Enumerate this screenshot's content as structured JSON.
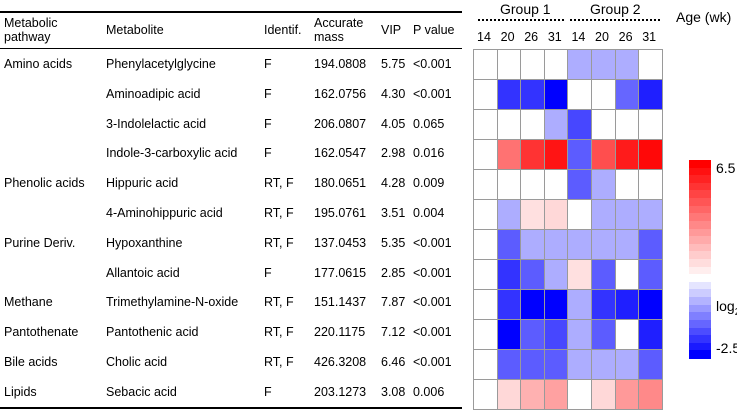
{
  "headers": {
    "pathway": [
      "Metabolic",
      "pathway"
    ],
    "metabolite": "Metabolite",
    "identif": "Identif.",
    "mass": [
      "Accurate",
      "mass"
    ],
    "vip": "VIP",
    "pvalue": "P value"
  },
  "rows": [
    {
      "pathway": "Amino acids",
      "metabolite": "Phenylacetylglycine",
      "identif": "F",
      "mass": "194.0808",
      "vip": "5.75",
      "p": "<0.001"
    },
    {
      "pathway": "",
      "metabolite": "Aminoadipic acid",
      "identif": "F",
      "mass": "162.0756",
      "vip": "4.30",
      "p": "<0.001"
    },
    {
      "pathway": "",
      "metabolite": "3-Indolelactic acid",
      "identif": "F",
      "mass": "206.0807",
      "vip": "4.05",
      "p": "0.065"
    },
    {
      "pathway": "",
      "metabolite": "Indole-3-carboxylic acid",
      "identif": "F",
      "mass": "162.0547",
      "vip": "2.98",
      "p": "0.016"
    },
    {
      "pathway": "Phenolic acids",
      "metabolite": "Hippuric acid",
      "identif": "RT, F",
      "mass": "180.0651",
      "vip": "4.28",
      "p": "0.009"
    },
    {
      "pathway": "",
      "metabolite": "4-Aminohippuric acid",
      "identif": "RT, F",
      "mass": "195.0761",
      "vip": "3.51",
      "p": "0.004"
    },
    {
      "pathway": "Purine Deriv.",
      "metabolite": "Hypoxanthine",
      "identif": "RT, F",
      "mass": "137.0453",
      "vip": "5.35",
      "p": "<0.001"
    },
    {
      "pathway": "",
      "metabolite": "Allantoic acid",
      "identif": "F",
      "mass": "177.0615",
      "vip": "2.85",
      "p": "<0.001"
    },
    {
      "pathway": "Methane",
      "metabolite": "Trimethylamine-N-oxide",
      "identif": "RT, F",
      "mass": "151.1437",
      "vip": "7.87",
      "p": "<0.001"
    },
    {
      "pathway": "Pantothenate",
      "metabolite": "Pantothenic acid",
      "identif": "RT, F",
      "mass": "220.1175",
      "vip": "7.12",
      "p": "<0.001"
    },
    {
      "pathway": "Bile acids",
      "metabolite": "Cholic acid",
      "identif": "RT, F",
      "mass": "426.3208",
      "vip": "6.46",
      "p": "<0.001"
    },
    {
      "pathway": "Lipids",
      "metabolite": "Sebacic acid",
      "identif": "F",
      "mass": "203.1273",
      "vip": "3.08",
      "p": "0.006"
    }
  ],
  "chart_data": {
    "type": "heatmap",
    "groups": [
      "Group 1",
      "Group 2"
    ],
    "age_label": "Age (wk)",
    "columns": [
      "14",
      "20",
      "26",
      "31",
      "14",
      "20",
      "26",
      "31"
    ],
    "rows": [
      "Phenylacetylglycine",
      "Aminoadipic acid",
      "3-Indolelactic acid",
      "Indole-3-carboxylic acid",
      "Hippuric acid",
      "4-Aminohippuric acid",
      "Hypoxanthine",
      "Allantoic acid",
      "Trimethylamine-N-oxide",
      "Pantothenic acid",
      "Cholic acid",
      "Sebacic acid"
    ],
    "values": [
      [
        0,
        0,
        0,
        0,
        -0.8,
        -0.8,
        -0.8,
        0
      ],
      [
        0,
        -2.0,
        -2.0,
        -2.5,
        0,
        0,
        -1.5,
        -2.2
      ],
      [
        0,
        0,
        0,
        -0.8,
        -1.8,
        0,
        0,
        0
      ],
      [
        0,
        3.6,
        5.2,
        6.0,
        -1.6,
        4.5,
        5.8,
        6.3
      ],
      [
        0,
        0,
        0,
        0,
        -1.6,
        -0.8,
        0,
        0
      ],
      [
        0,
        -0.8,
        0.8,
        1.0,
        0,
        -0.8,
        -0.8,
        -0.8
      ],
      [
        0,
        -1.6,
        -0.8,
        -0.8,
        -0.8,
        -0.8,
        -0.8,
        -1.6
      ],
      [
        0,
        -2.0,
        -1.6,
        -0.8,
        0.8,
        -1.6,
        0,
        -1.6
      ],
      [
        0,
        -2.0,
        -2.5,
        -2.5,
        -0.8,
        -2.0,
        -2.2,
        -2.5
      ],
      [
        0,
        -2.5,
        -1.6,
        -1.8,
        -0.8,
        -1.6,
        0,
        -2.2
      ],
      [
        0,
        -1.6,
        -1.6,
        -1.6,
        -0.8,
        -0.8,
        -0.8,
        -1.6
      ],
      [
        0,
        1.0,
        2.0,
        2.4,
        0,
        1.0,
        2.6,
        3.0
      ]
    ],
    "scale": {
      "min": -2.5,
      "max": 6.5,
      "max_label": "6.5",
      "min_label": "-2.5",
      "unit_label": "log",
      "unit_sub": "2"
    },
    "colors": {
      "high": "#ff0000",
      "low": "#0000ff",
      "neutral": "#ffffff"
    }
  }
}
